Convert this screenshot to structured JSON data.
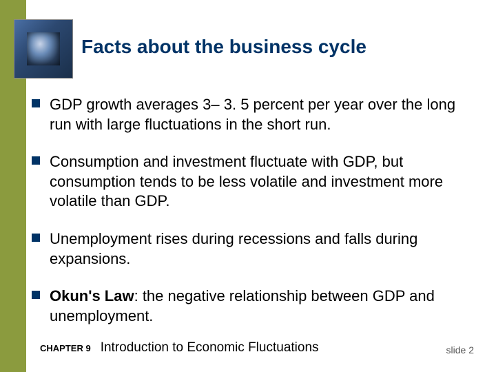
{
  "title": "Facts about the business cycle",
  "title_color": "#003366",
  "title_fontsize": 28,
  "sidebar_color": "#8b9b3e",
  "bullet_marker_color": "#003366",
  "body_fontsize": 22,
  "bullets": [
    {
      "text": "GDP growth averages 3– 3. 5 percent per year over the long run with large fluctuations in the short run.",
      "bold_term": null
    },
    {
      "text": "Consumption and investment fluctuate with GDP, but consumption tends to be less volatile and investment more volatile than GDP.",
      "bold_term": null
    },
    {
      "text": "Unemployment rises during recessions and falls during expansions.",
      "bold_term": null
    },
    {
      "text_before_bold": "",
      "bold_term": "Okun's Law",
      "text": ":  the negative relationship between GDP and unemployment."
    }
  ],
  "footer": {
    "chapter_label": "CHAPTER 9",
    "chapter_title": "Introduction to Economic Fluctuations",
    "slide_number": "slide 2"
  }
}
